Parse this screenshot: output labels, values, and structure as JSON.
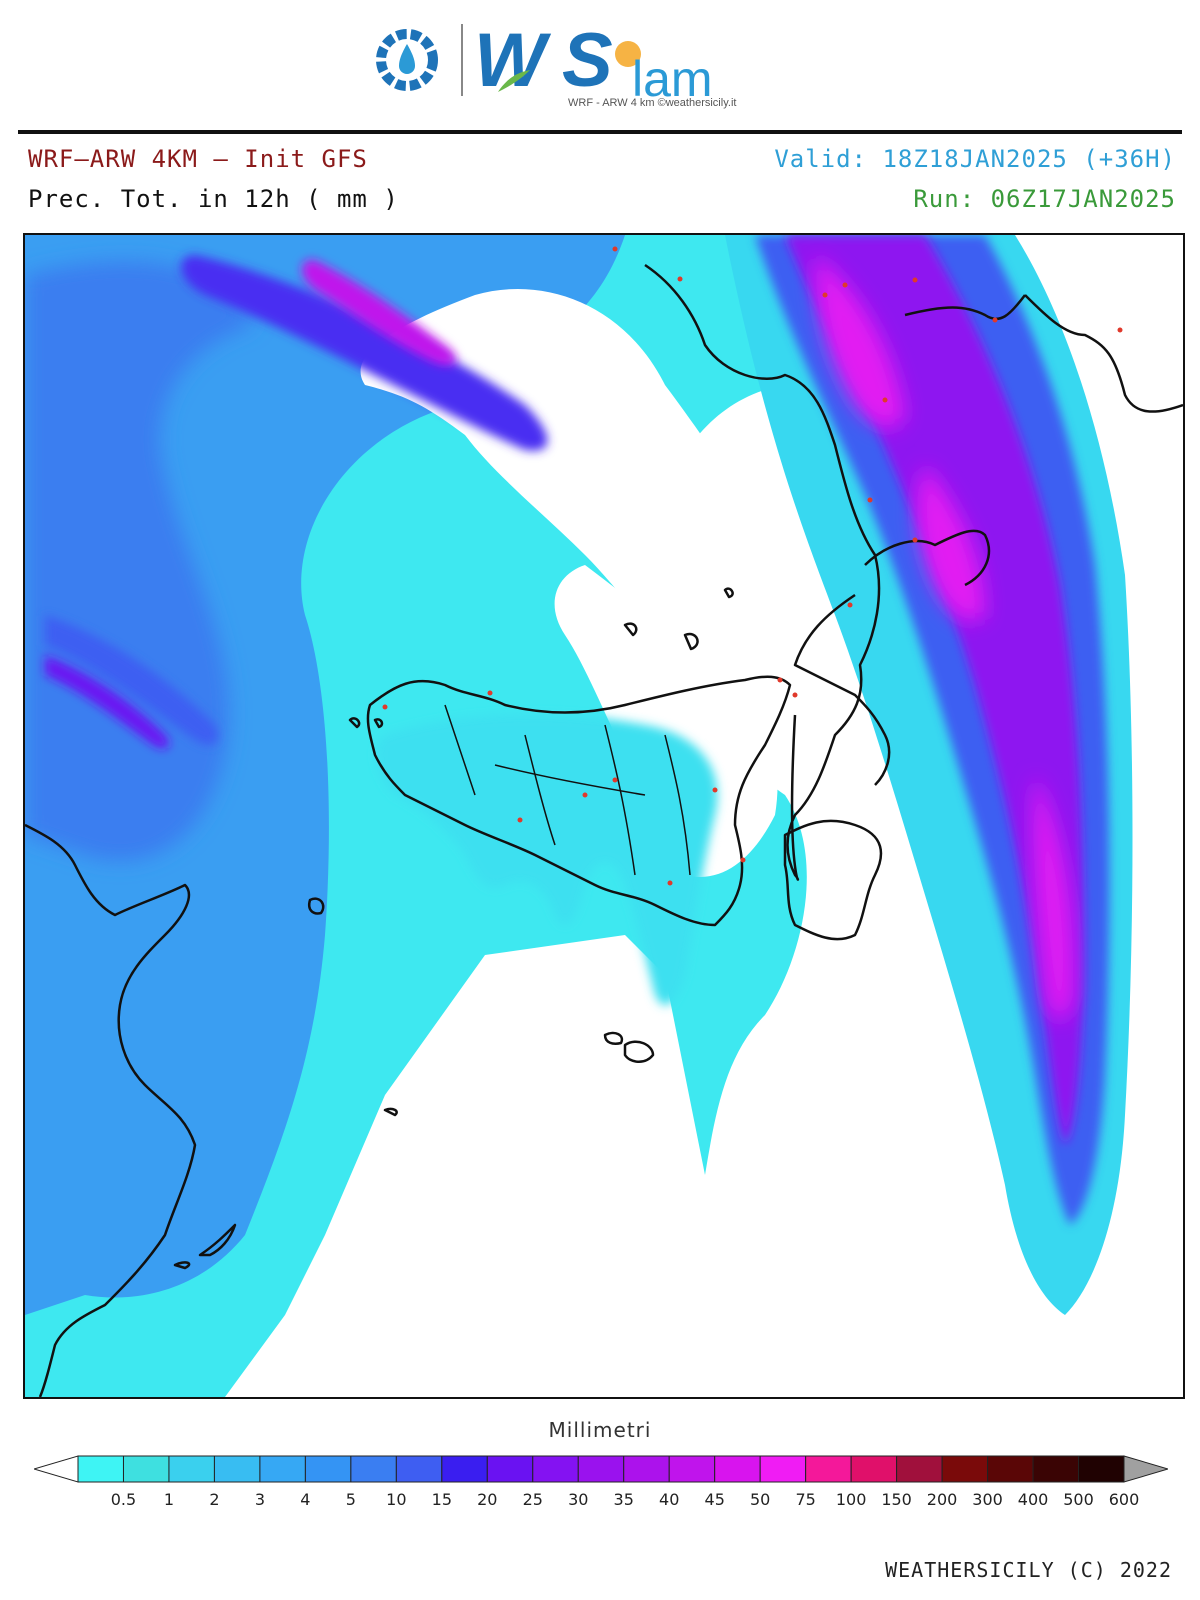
{
  "logo": {
    "name": "WSlam",
    "subtitle": "WRF - ARW 4 km ©weathersicily.it"
  },
  "header": {
    "model": "WRF–ARW 4KM – Init GFS",
    "field": "Prec. Tot. in 12h ( mm )",
    "valid": "Valid: 18Z18JAN2025 (+36H)",
    "run": "Run: 06Z17JAN2025"
  },
  "colors": {
    "model": "#8b1a1a",
    "valid": "#2f9fd6",
    "run": "#3a9a3a"
  },
  "colorbar": {
    "title": "Millimetri",
    "labels": [
      "0.5",
      "1",
      "2",
      "3",
      "4",
      "5",
      "10",
      "15",
      "20",
      "25",
      "30",
      "35",
      "40",
      "45",
      "50",
      "75",
      "100",
      "150",
      "200",
      "300",
      "400",
      "500",
      "600"
    ],
    "colors": [
      "#3ef4f4",
      "#3ee0e0",
      "#3ad0ee",
      "#38bdf2",
      "#36a8f4",
      "#3494f4",
      "#3a7ef2",
      "#3e5ef2",
      "#3a1ef0",
      "#6a12f2",
      "#8412f2",
      "#9a12ee",
      "#ac12ec",
      "#c014ec",
      "#d814ee",
      "#f01cf4",
      "#f4189a",
      "#e0106a",
      "#a0103c",
      "#7a0a0a",
      "#5a0606",
      "#3a0404",
      "#200202"
    ],
    "under_color": "#ffffff",
    "over_color": "#a0a0a0"
  },
  "footer": "WEATHERSICILY (C) 2022"
}
